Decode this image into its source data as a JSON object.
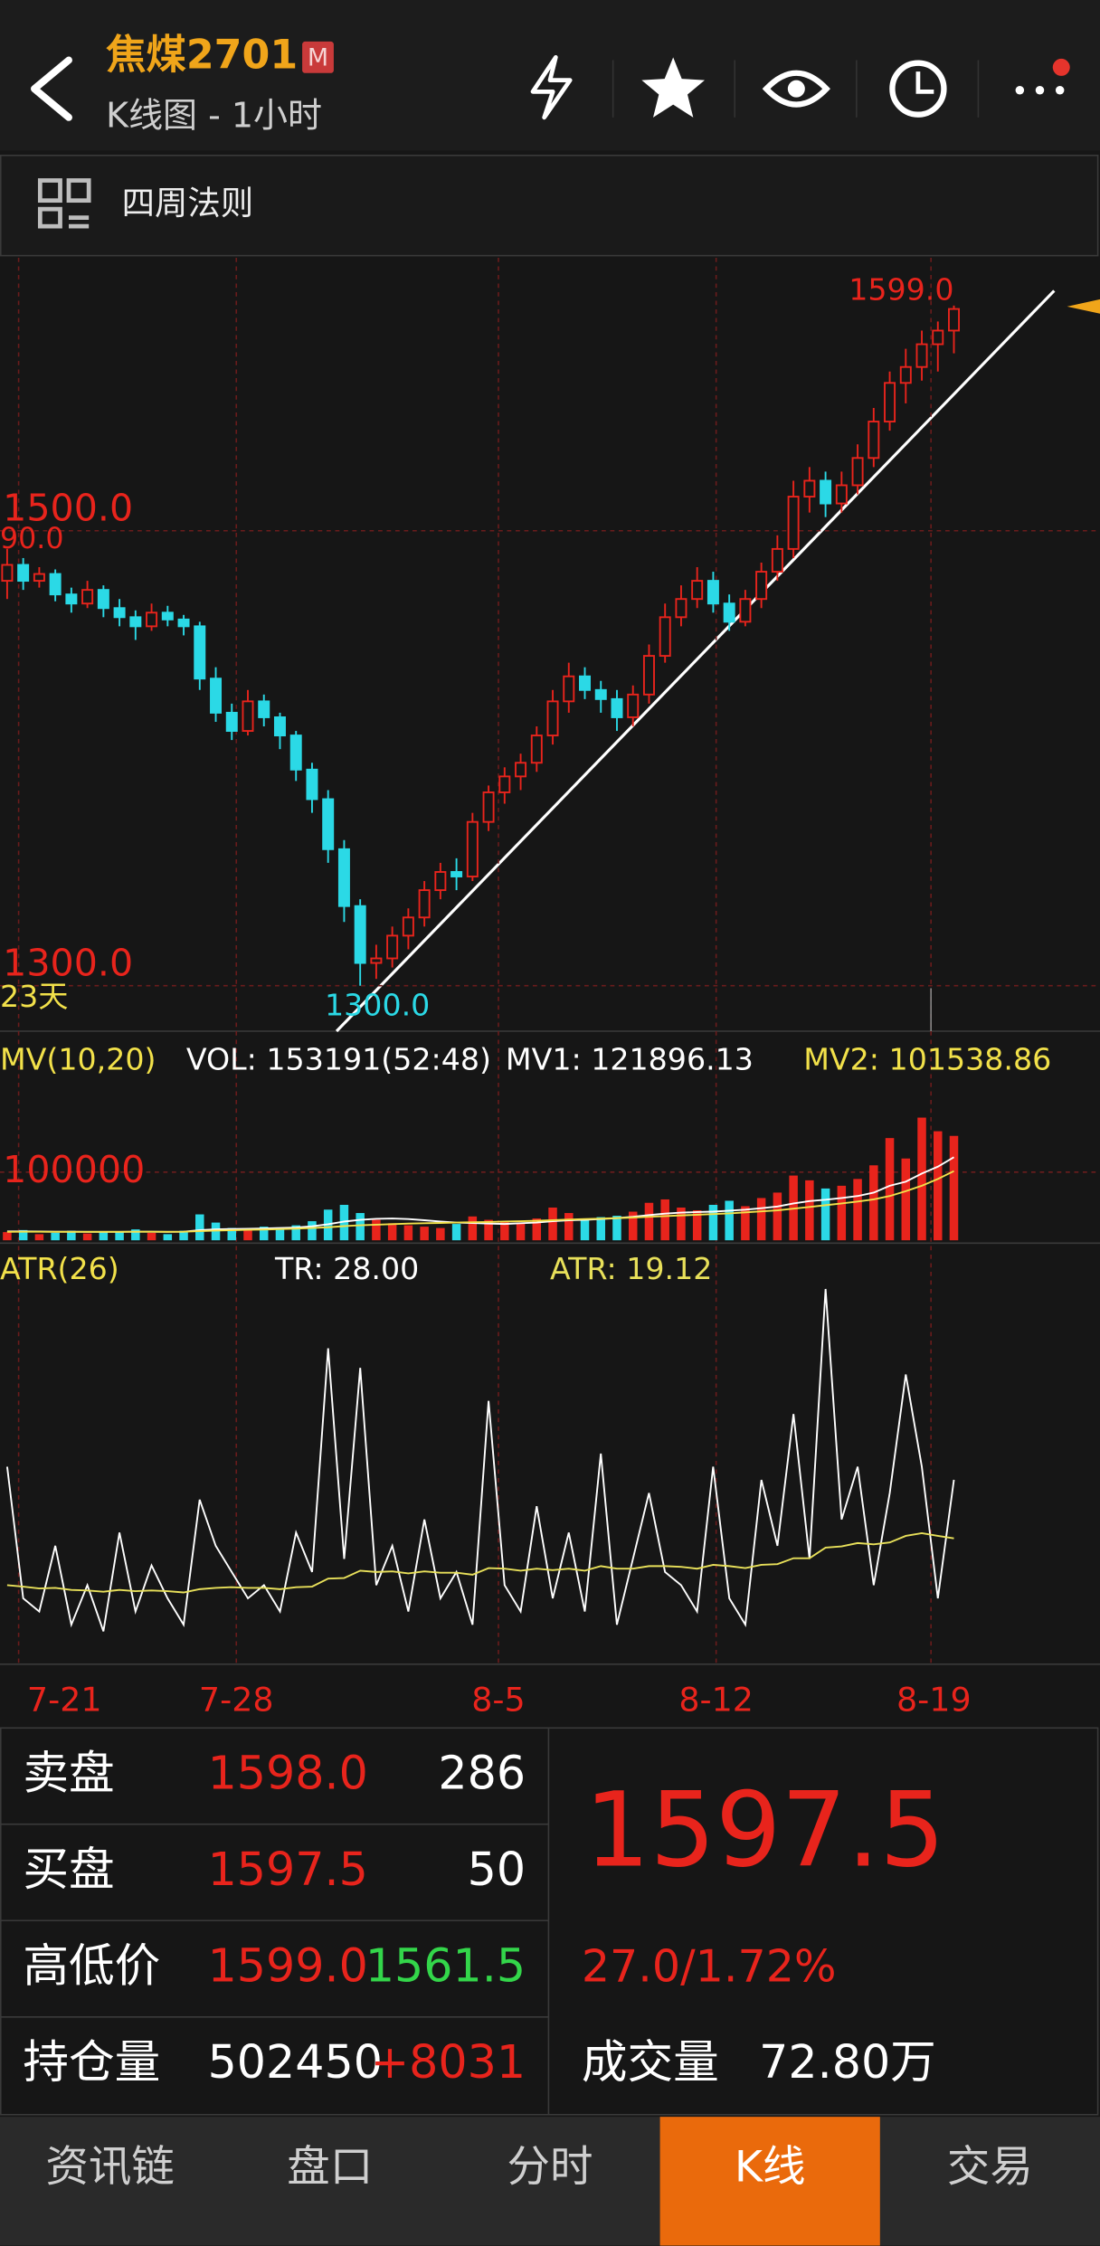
{
  "header": {
    "title": "焦煤2701",
    "badge": "M",
    "subtitle": "K线图 - 1小时"
  },
  "toolbar": {
    "label": "四周法则"
  },
  "chart_data": [
    {
      "type": "candlestick",
      "ylim": [
        1280,
        1620
      ],
      "yticks": [
        {
          "value": 1500,
          "label": "1500.0"
        },
        {
          "value": 1300,
          "label": "1300.0"
        }
      ],
      "annotations": {
        "high": "1599.0",
        "low": "1300.0",
        "edge": "90.0",
        "days": "23天"
      },
      "x_dates": [
        "7-21",
        "7-28",
        "8-5",
        "8-12",
        "8-19"
      ],
      "colors": {
        "up": "#e8241c",
        "down": "#2bd9e6"
      },
      "candles": [
        [
          1478,
          1492,
          1470,
          1485
        ],
        [
          1485,
          1488,
          1474,
          1478
        ],
        [
          1478,
          1484,
          1475,
          1481
        ],
        [
          1481,
          1483,
          1469,
          1472
        ],
        [
          1472,
          1475,
          1464,
          1468
        ],
        [
          1468,
          1478,
          1466,
          1474
        ],
        [
          1474,
          1476,
          1462,
          1466
        ],
        [
          1466,
          1470,
          1458,
          1462
        ],
        [
          1462,
          1465,
          1452,
          1458
        ],
        [
          1458,
          1468,
          1456,
          1464
        ],
        [
          1464,
          1467,
          1458,
          1461
        ],
        [
          1461,
          1463,
          1454,
          1458
        ],
        [
          1458,
          1460,
          1430,
          1435
        ],
        [
          1435,
          1440,
          1416,
          1420
        ],
        [
          1420,
          1424,
          1408,
          1412
        ],
        [
          1412,
          1430,
          1410,
          1425
        ],
        [
          1425,
          1428,
          1414,
          1418
        ],
        [
          1418,
          1420,
          1404,
          1410
        ],
        [
          1410,
          1412,
          1390,
          1395
        ],
        [
          1395,
          1398,
          1376,
          1382
        ],
        [
          1382,
          1386,
          1354,
          1360
        ],
        [
          1360,
          1364,
          1328,
          1335
        ],
        [
          1335,
          1338,
          1300,
          1310
        ],
        [
          1310,
          1318,
          1303,
          1312
        ],
        [
          1312,
          1326,
          1308,
          1322
        ],
        [
          1322,
          1334,
          1316,
          1330
        ],
        [
          1330,
          1346,
          1326,
          1342
        ],
        [
          1342,
          1354,
          1338,
          1350
        ],
        [
          1350,
          1356,
          1342,
          1348
        ],
        [
          1348,
          1376,
          1346,
          1372
        ],
        [
          1372,
          1388,
          1368,
          1385
        ],
        [
          1385,
          1396,
          1380,
          1392
        ],
        [
          1392,
          1402,
          1386,
          1398
        ],
        [
          1398,
          1414,
          1394,
          1410
        ],
        [
          1410,
          1430,
          1406,
          1425
        ],
        [
          1425,
          1442,
          1420,
          1436
        ],
        [
          1436,
          1440,
          1426,
          1430
        ],
        [
          1430,
          1434,
          1420,
          1426
        ],
        [
          1426,
          1430,
          1412,
          1418
        ],
        [
          1418,
          1432,
          1414,
          1428
        ],
        [
          1428,
          1450,
          1424,
          1445
        ],
        [
          1445,
          1468,
          1442,
          1462
        ],
        [
          1462,
          1476,
          1458,
          1470
        ],
        [
          1470,
          1484,
          1466,
          1478
        ],
        [
          1478,
          1482,
          1464,
          1468
        ],
        [
          1468,
          1472,
          1456,
          1460
        ],
        [
          1460,
          1474,
          1458,
          1470
        ],
        [
          1470,
          1486,
          1466,
          1482
        ],
        [
          1482,
          1498,
          1478,
          1492
        ],
        [
          1492,
          1522,
          1488,
          1515
        ],
        [
          1515,
          1528,
          1508,
          1522
        ],
        [
          1522,
          1526,
          1506,
          1512
        ],
        [
          1512,
          1526,
          1508,
          1520
        ],
        [
          1520,
          1538,
          1516,
          1532
        ],
        [
          1532,
          1554,
          1528,
          1548
        ],
        [
          1548,
          1570,
          1544,
          1565
        ],
        [
          1565,
          1580,
          1556,
          1572
        ],
        [
          1572,
          1588,
          1566,
          1582
        ],
        [
          1582,
          1592,
          1570,
          1588
        ],
        [
          1588,
          1599,
          1578,
          1597.5
        ]
      ]
    },
    {
      "type": "bar",
      "title": "MV(10,20)",
      "vol_label": "VOL: 153191(52:48)",
      "ylim": [
        0,
        290000
      ],
      "yticks": [
        100000
      ],
      "values": [
        12000,
        15000,
        9000,
        11000,
        14000,
        10000,
        13000,
        12000,
        16000,
        11000,
        9000,
        14000,
        38000,
        26000,
        18000,
        15000,
        20000,
        17000,
        22000,
        28000,
        45000,
        52000,
        40000,
        30000,
        25000,
        22000,
        20000,
        18000,
        24000,
        35000,
        30000,
        28000,
        26000,
        32000,
        48000,
        40000,
        30000,
        34000,
        36000,
        42000,
        55000,
        60000,
        48000,
        44000,
        52000,
        58000,
        50000,
        62000,
        70000,
        95000,
        88000,
        76000,
        80000,
        90000,
        110000,
        150000,
        120000,
        180000,
        160000,
        153191
      ],
      "series": [
        {
          "name": "MV1: 121896.13",
          "color": "#ffffff",
          "values": [
            13000,
            13000,
            12800,
            12600,
            12700,
            12500,
            12400,
            12500,
            12700,
            12600,
            12400,
            12600,
            15000,
            16000,
            16500,
            16800,
            17500,
            18000,
            18800,
            20500,
            23500,
            27500,
            30000,
            31500,
            32000,
            31000,
            29500,
            27500,
            26000,
            25500,
            24500,
            24000,
            25000,
            26000,
            28000,
            29500,
            30000,
            31000,
            32500,
            34500,
            37000,
            39000,
            40500,
            41500,
            42000,
            43500,
            45000,
            47000,
            49500,
            54000,
            57500,
            59500,
            62000,
            65000,
            70000,
            80000,
            86000,
            98000,
            108000,
            121896.13
          ]
        },
        {
          "name": "MV2: 101538.86",
          "color": "#f2e14a",
          "values": [
            12500,
            12600,
            12600,
            12500,
            12500,
            12400,
            12500,
            12500,
            12600,
            12600,
            12500,
            12600,
            13500,
            14200,
            14800,
            15300,
            15800,
            16300,
            17000,
            18000,
            19200,
            20800,
            22000,
            23000,
            23800,
            24500,
            25000,
            25500,
            26000,
            26500,
            27000,
            27500,
            28000,
            28500,
            29500,
            30500,
            31000,
            31800,
            32500,
            33500,
            34500,
            35500,
            36500,
            37500,
            38500,
            39500,
            41000,
            42500,
            44000,
            46500,
            49000,
            51500,
            54000,
            57000,
            60000,
            65000,
            72000,
            80000,
            90000,
            101538.86
          ]
        }
      ]
    },
    {
      "type": "line",
      "title": "ATR(26)",
      "ylim": [
        0,
        62
      ],
      "series": [
        {
          "name": "TR: 28.00",
          "color": "#ffffff",
          "values": [
            30,
            10,
            8,
            18,
            6,
            12,
            5,
            20,
            8,
            15,
            10,
            6,
            25,
            18,
            14,
            10,
            12,
            8,
            20,
            14,
            48,
            16,
            45,
            12,
            18,
            8,
            22,
            10,
            14,
            6,
            40,
            12,
            8,
            24,
            10,
            20,
            8,
            32,
            6,
            16,
            26,
            14,
            12,
            8,
            30,
            10,
            6,
            28,
            18,
            38,
            16,
            57,
            22,
            30,
            12,
            26,
            44,
            30,
            10,
            28
          ]
        },
        {
          "name": "ATR: 19.12",
          "color": "#e8e05a",
          "values": [
            12,
            11.8,
            11.5,
            11.6,
            11.3,
            11.2,
            11,
            11.3,
            11.1,
            11.2,
            11.1,
            10.9,
            11.4,
            11.6,
            11.7,
            11.6,
            11.6,
            11.4,
            11.7,
            11.8,
            13,
            13.1,
            14.2,
            14,
            14.1,
            13.8,
            14.1,
            13.9,
            13.9,
            13.6,
            14.6,
            14.5,
            14.2,
            14.5,
            14.3,
            14.5,
            14.2,
            14.9,
            14.5,
            14.5,
            14.9,
            14.9,
            14.8,
            14.5,
            15.1,
            14.9,
            14.6,
            15.1,
            15.2,
            16.1,
            16.1,
            17.7,
            17.9,
            18.4,
            18.2,
            18.5,
            19.5,
            19.9,
            19.5,
            19.12
          ]
        }
      ]
    }
  ],
  "quote": {
    "rows": [
      [
        "卖盘",
        "1598.0",
        "286"
      ],
      [
        "买盘",
        "1597.5",
        "50"
      ],
      [
        "高低价",
        "1599.0",
        "1561.5"
      ],
      [
        "持仓量",
        "502450",
        "+8031"
      ]
    ],
    "price": "1597.5",
    "change": "27.0/1.72%",
    "volume_label": "成交量",
    "volume": "72.80万"
  },
  "tabs": {
    "items": [
      "资讯链",
      "盘口",
      "分时",
      "K线",
      "交易"
    ],
    "active": 3
  }
}
